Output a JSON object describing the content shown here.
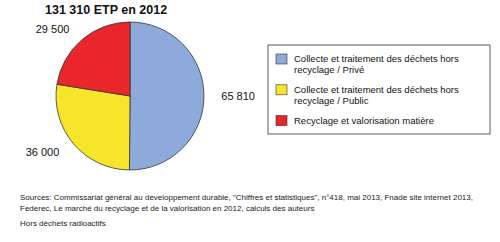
{
  "chart_data": {
    "type": "pie",
    "title": "131 310 ETP en 2012",
    "categories": [
      "Collecte et traitement des déchets hors recyclage / Privé",
      "Collecte et traitement des déchets hors recyclage / Public",
      "Recyclage et valorisation matière"
    ],
    "values": [
      65810,
      36000,
      29500
    ],
    "value_labels": [
      "65 810",
      "36 000",
      "29 500"
    ],
    "colors": [
      "#8eaadb",
      "#f7e52b",
      "#e8262b"
    ],
    "data_labels": true,
    "legend": "right",
    "source": [
      "Sources: Commissariat général au développement durable, \"Chiffres et statistiques\", n°418, mai 2013, Fnade site internet 2013,",
      "Federec, Le marché du recyclage et de la valorisation en 2012, calculs des auteurs"
    ],
    "note": "Hors déchets radioactifs"
  }
}
